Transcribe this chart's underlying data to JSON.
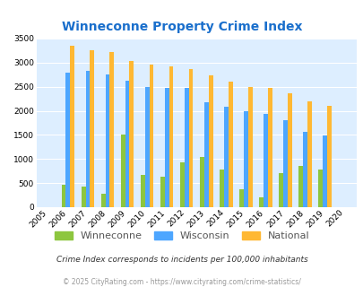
{
  "title": "Winneconne Property Crime Index",
  "years": [
    2005,
    2006,
    2007,
    2008,
    2009,
    2010,
    2011,
    2012,
    2013,
    2014,
    2015,
    2016,
    2017,
    2018,
    2019,
    2020
  ],
  "winneconne": [
    0,
    470,
    430,
    280,
    1500,
    670,
    640,
    930,
    1040,
    790,
    370,
    210,
    700,
    850,
    780,
    0
  ],
  "wisconsin": [
    0,
    2800,
    2820,
    2750,
    2620,
    2500,
    2470,
    2470,
    2170,
    2090,
    1990,
    1940,
    1800,
    1560,
    1480,
    0
  ],
  "national": [
    0,
    3340,
    3250,
    3210,
    3040,
    2950,
    2920,
    2860,
    2730,
    2600,
    2490,
    2470,
    2370,
    2200,
    2110,
    0
  ],
  "bar_width": 0.22,
  "winneconne_color": "#8dc63f",
  "wisconsin_color": "#4da6ff",
  "national_color": "#ffb833",
  "bg_color": "#ddeeff",
  "ylim": [
    0,
    3500
  ],
  "yticks": [
    0,
    500,
    1000,
    1500,
    2000,
    2500,
    3000,
    3500
  ],
  "title_color": "#1a6fcc",
  "title_fontsize": 10,
  "footnote1": "Crime Index corresponds to incidents per 100,000 inhabitants",
  "footnote2": "© 2025 CityRating.com - https://www.cityrating.com/crime-statistics/",
  "footnote1_color": "#333333",
  "footnote2_color": "#999999"
}
